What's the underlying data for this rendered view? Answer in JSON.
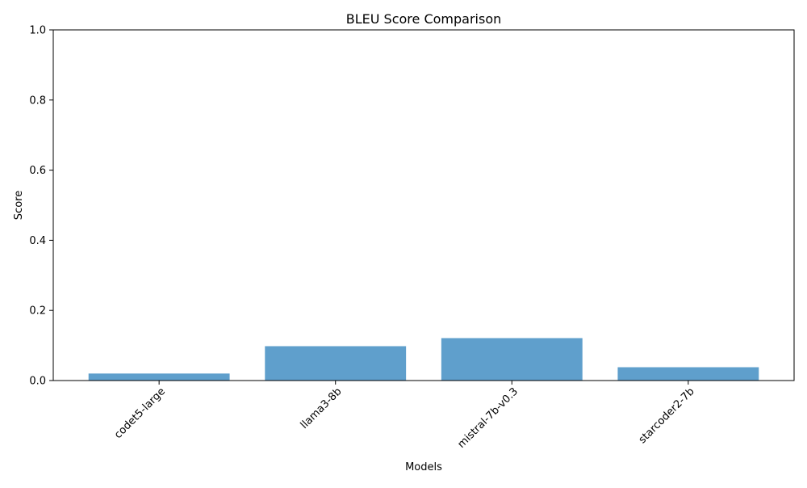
{
  "chart_data": {
    "type": "bar",
    "title": "BLEU Score Comparison",
    "xlabel": "Models",
    "ylabel": "Score",
    "categories": [
      "codet5-large",
      "llama3-8b",
      "mistral-7b-v0.3",
      "starcoder2-7b"
    ],
    "values": [
      0.02,
      0.098,
      0.121,
      0.038
    ],
    "ylim": [
      0,
      1.0
    ],
    "yticks": [
      "0.0",
      "0.2",
      "0.4",
      "0.6",
      "0.8",
      "1.0"
    ],
    "bar_color": "#5f9fcc",
    "grid": false,
    "legend": "none"
  }
}
